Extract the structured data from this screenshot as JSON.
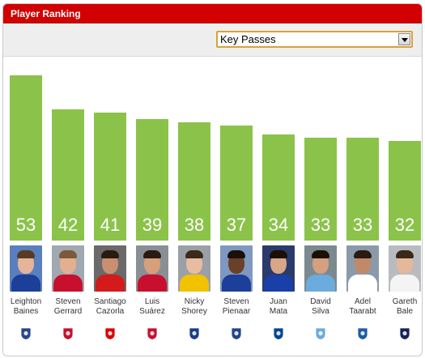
{
  "header": {
    "title": "Player Ranking"
  },
  "selector": {
    "value": "Key Passes"
  },
  "colors": {
    "bar": "#8bc34a",
    "header": "#d20000"
  },
  "chart_data": {
    "type": "bar",
    "categories": [
      "Leighton Baines",
      "Steven Gerrard",
      "Santiago Cazorla",
      "Luis Suárez",
      "Nicky Shorey",
      "Steven Pienaar",
      "Juan Mata",
      "David Silva",
      "Adel Taarabt",
      "Gareth Bale"
    ],
    "values": [
      53,
      42,
      41,
      39,
      38,
      37,
      34,
      33,
      33,
      32
    ],
    "xlabel": "",
    "ylabel": "",
    "grid": false,
    "legend": "none"
  },
  "players": [
    {
      "first": "Leighton",
      "last": "Baines",
      "club": "Everton",
      "club_icon": "everton-crest-icon",
      "shirt": "#1c3f9a",
      "bg": "#5a7fbf",
      "skin": "#e4b59a",
      "hair": "#5a3a22"
    },
    {
      "first": "Steven",
      "last": "Gerrard",
      "club": "Liverpool",
      "club_icon": "liverpool-crest-icon",
      "shirt": "#c8102e",
      "bg": "#a0a8b0",
      "skin": "#e2b090",
      "hair": "#7a5a3a"
    },
    {
      "first": "Santiago",
      "last": "Cazorla",
      "club": "Arsenal",
      "club_icon": "arsenal-crest-icon",
      "shirt": "#d41a1a",
      "bg": "#6a6a6a",
      "skin": "#c89070",
      "hair": "#2a1a10"
    },
    {
      "first": "Luis",
      "last": "Suárez",
      "club": "Liverpool",
      "club_icon": "liverpool-crest-icon",
      "shirt": "#c8102e",
      "bg": "#8a8f95",
      "skin": "#d8a07a",
      "hair": "#2a1a10"
    },
    {
      "first": "Nicky",
      "last": "Shorey",
      "club": "Reading",
      "club_icon": "reading-crest-icon",
      "shirt": "#f2c200",
      "bg": "#9aa0a6",
      "skin": "#e8bca0",
      "hair": "#3a2a1a"
    },
    {
      "first": "Steven",
      "last": "Pienaar",
      "club": "Everton",
      "club_icon": "everton-crest-icon",
      "shirt": "#1c3f9a",
      "bg": "#7f98c0",
      "skin": "#6a4028",
      "hair": "#1a1008"
    },
    {
      "first": "Juan",
      "last": "Mata",
      "club": "Chelsea",
      "club_icon": "chelsea-crest-icon",
      "shirt": "#1a3fa8",
      "bg": "#2a3a6a",
      "skin": "#d8a688",
      "hair": "#1a1008"
    },
    {
      "first": "David",
      "last": "Silva",
      "club": "Manchester City",
      "club_icon": "mancity-crest-icon",
      "shirt": "#6cabdd",
      "bg": "#7a8a8f",
      "skin": "#d4a080",
      "hair": "#1a1008"
    },
    {
      "first": "Adel",
      "last": "Taarabt",
      "club": "QPR",
      "club_icon": "qpr-crest-icon",
      "shirt": "#ffffff",
      "bg": "#8a9aa8",
      "skin": "#c08a68",
      "hair": "#2a1a10"
    },
    {
      "first": "Gareth",
      "last": "Bale",
      "club": "Tottenham",
      "club_icon": "tottenham-crest-icon",
      "shirt": "#f4f4f4",
      "bg": "#b8bcc0",
      "skin": "#e4b898",
      "hair": "#3a2818"
    }
  ],
  "crest_colors": {
    "everton-crest-icon": "#274488",
    "liverpool-crest-icon": "#c8102e",
    "arsenal-crest-icon": "#db0007",
    "reading-crest-icon": "#1a3c8a",
    "chelsea-crest-icon": "#034694",
    "mancity-crest-icon": "#6cabdd",
    "qpr-crest-icon": "#1d5ba4",
    "tottenham-crest-icon": "#132257"
  }
}
